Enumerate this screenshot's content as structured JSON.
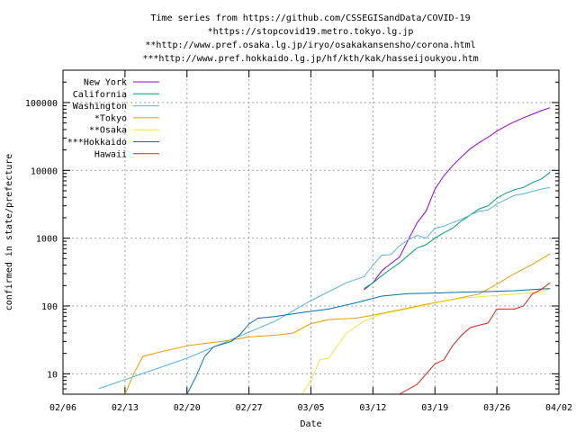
{
  "chart_data": {
    "type": "line",
    "title_lines": [
      "Time series from https://github.com/CSSEGISandData/COVID-19",
      "*https://stopcovid19.metro.tokyo.lg.jp",
      "**http://www.pref.osaka.lg.jp/iryo/osakakansensho/corona.html",
      "***http://www.pref.hokkaido.lg.jp/hf/kth/kak/hasseijoukyou.htm"
    ],
    "xlabel": "Date",
    "ylabel": "confirmed in state/prefecture",
    "y_scale": "log",
    "ylim": [
      5,
      300000
    ],
    "x_ticks": [
      "02/06",
      "02/13",
      "02/20",
      "02/27",
      "03/05",
      "03/12",
      "03/19",
      "03/26",
      "04/02"
    ],
    "y_ticks": [
      {
        "label": "10",
        "value": 10
      },
      {
        "label": "100",
        "value": 100
      },
      {
        "label": "1000",
        "value": 1000
      },
      {
        "label": "10000",
        "value": 10000
      },
      {
        "label": "100000",
        "value": 100000
      }
    ],
    "grid": true,
    "legend_position": "top-left",
    "series": [
      {
        "name": "New York",
        "color": "#9400d3",
        "points": [
          [
            "03/11",
            173
          ],
          [
            "03/12",
            220
          ],
          [
            "03/13",
            330
          ],
          [
            "03/14",
            420
          ],
          [
            "03/15",
            525
          ],
          [
            "03/16",
            950
          ],
          [
            "03/17",
            1700
          ],
          [
            "03/18",
            2500
          ],
          [
            "03/19",
            5300
          ],
          [
            "03/20",
            8300
          ],
          [
            "03/21",
            11700
          ],
          [
            "03/22",
            15800
          ],
          [
            "03/23",
            20900
          ],
          [
            "03/24",
            25700
          ],
          [
            "03/25",
            30800
          ],
          [
            "03/26",
            37900
          ],
          [
            "03/27",
            44900
          ],
          [
            "03/28",
            52300
          ],
          [
            "03/29",
            59500
          ],
          [
            "03/30",
            67200
          ],
          [
            "03/31",
            75800
          ],
          [
            "04/01",
            83900
          ]
        ]
      },
      {
        "name": "California",
        "color": "#009e73",
        "points": [
          [
            "03/11",
            180
          ],
          [
            "03/12",
            220
          ],
          [
            "03/13",
            280
          ],
          [
            "03/14",
            350
          ],
          [
            "03/15",
            430
          ],
          [
            "03/16",
            560
          ],
          [
            "03/17",
            720
          ],
          [
            "03/18",
            800
          ],
          [
            "03/19",
            1000
          ],
          [
            "03/20",
            1200
          ],
          [
            "03/21",
            1400
          ],
          [
            "03/22",
            1800
          ],
          [
            "03/23",
            2200
          ],
          [
            "03/24",
            2700
          ],
          [
            "03/25",
            3000
          ],
          [
            "03/26",
            3900
          ],
          [
            "03/27",
            4600
          ],
          [
            "03/28",
            5200
          ],
          [
            "03/29",
            5600
          ],
          [
            "03/30",
            6600
          ],
          [
            "03/31",
            7400
          ],
          [
            "04/01",
            9400
          ]
        ]
      },
      {
        "name": "Washington",
        "color": "#56b4e9",
        "points": [
          [
            "02/10",
            6
          ],
          [
            "02/20",
            17
          ],
          [
            "03/01",
            60
          ],
          [
            "03/05",
            120
          ],
          [
            "03/09",
            220
          ],
          [
            "03/11",
            270
          ],
          [
            "03/12",
            400
          ],
          [
            "03/13",
            560
          ],
          [
            "03/14",
            570
          ],
          [
            "03/15",
            770
          ],
          [
            "03/16",
            950
          ],
          [
            "03/17",
            1100
          ],
          [
            "03/18",
            1000
          ],
          [
            "03/19",
            1400
          ],
          [
            "03/20",
            1500
          ],
          [
            "03/21",
            1700
          ],
          [
            "03/22",
            1900
          ],
          [
            "03/23",
            2200
          ],
          [
            "03/24",
            2500
          ],
          [
            "03/25",
            2600
          ],
          [
            "03/26",
            3200
          ],
          [
            "03/27",
            3700
          ],
          [
            "03/28",
            4300
          ],
          [
            "03/29",
            4500
          ],
          [
            "03/30",
            4900
          ],
          [
            "03/31",
            5300
          ],
          [
            "04/01",
            5600
          ]
        ]
      },
      {
        "name": "*Tokyo",
        "color": "#e69f00",
        "points": [
          [
            "02/13",
            5
          ],
          [
            "02/14",
            10
          ],
          [
            "02/15",
            18
          ],
          [
            "02/17",
            21
          ],
          [
            "02/19",
            24
          ],
          [
            "02/20",
            26
          ],
          [
            "02/23",
            29
          ],
          [
            "02/26",
            33
          ],
          [
            "02/27",
            35
          ],
          [
            "03/01",
            37
          ],
          [
            "03/03",
            40
          ],
          [
            "03/05",
            55
          ],
          [
            "03/07",
            63
          ],
          [
            "03/10",
            66
          ],
          [
            "03/12",
            73
          ],
          [
            "03/15",
            88
          ],
          [
            "03/18",
            106
          ],
          [
            "03/21",
            125
          ],
          [
            "03/24",
            150
          ],
          [
            "03/26",
            210
          ],
          [
            "03/28",
            300
          ],
          [
            "03/30",
            410
          ],
          [
            "04/01",
            590
          ]
        ]
      },
      {
        "name": "**Osaka",
        "color": "#f0e442",
        "points": [
          [
            "03/04",
            5
          ],
          [
            "03/05",
            8
          ],
          [
            "03/06",
            16
          ],
          [
            "03/07",
            17
          ],
          [
            "03/09",
            40
          ],
          [
            "03/11",
            60
          ],
          [
            "03/13",
            76
          ],
          [
            "03/16",
            91
          ],
          [
            "03/19",
            110
          ],
          [
            "03/22",
            130
          ],
          [
            "03/25",
            140
          ],
          [
            "03/28",
            150
          ],
          [
            "03/31",
            160
          ],
          [
            "04/01",
            180
          ]
        ]
      },
      {
        "name": "***Hokkaido",
        "color": "#0072b2",
        "points": [
          [
            "02/20",
            5
          ],
          [
            "02/21",
            9
          ],
          [
            "02/22",
            18
          ],
          [
            "02/23",
            25
          ],
          [
            "02/25",
            30
          ],
          [
            "02/26",
            38
          ],
          [
            "02/27",
            54
          ],
          [
            "02/28",
            66
          ],
          [
            "03/01",
            70
          ],
          [
            "03/04",
            80
          ],
          [
            "03/07",
            90
          ],
          [
            "03/10",
            111
          ],
          [
            "03/13",
            140
          ],
          [
            "03/16",
            152
          ],
          [
            "03/19",
            155
          ],
          [
            "03/22",
            160
          ],
          [
            "03/25",
            163
          ],
          [
            "03/28",
            168
          ],
          [
            "03/31",
            178
          ],
          [
            "04/01",
            180
          ]
        ]
      },
      {
        "name": "Hawaii",
        "color": "#e51e10",
        "points": [
          [
            "03/15",
            5
          ],
          [
            "03/17",
            7
          ],
          [
            "03/19",
            14
          ],
          [
            "03/20",
            16
          ],
          [
            "03/21",
            26
          ],
          [
            "03/22",
            37
          ],
          [
            "03/23",
            48
          ],
          [
            "03/24",
            52
          ],
          [
            "03/25",
            56
          ],
          [
            "03/26",
            90
          ],
          [
            "03/28",
            90
          ],
          [
            "03/29",
            100
          ],
          [
            "03/30",
            150
          ],
          [
            "03/31",
            175
          ],
          [
            "04/01",
            220
          ]
        ]
      }
    ]
  }
}
